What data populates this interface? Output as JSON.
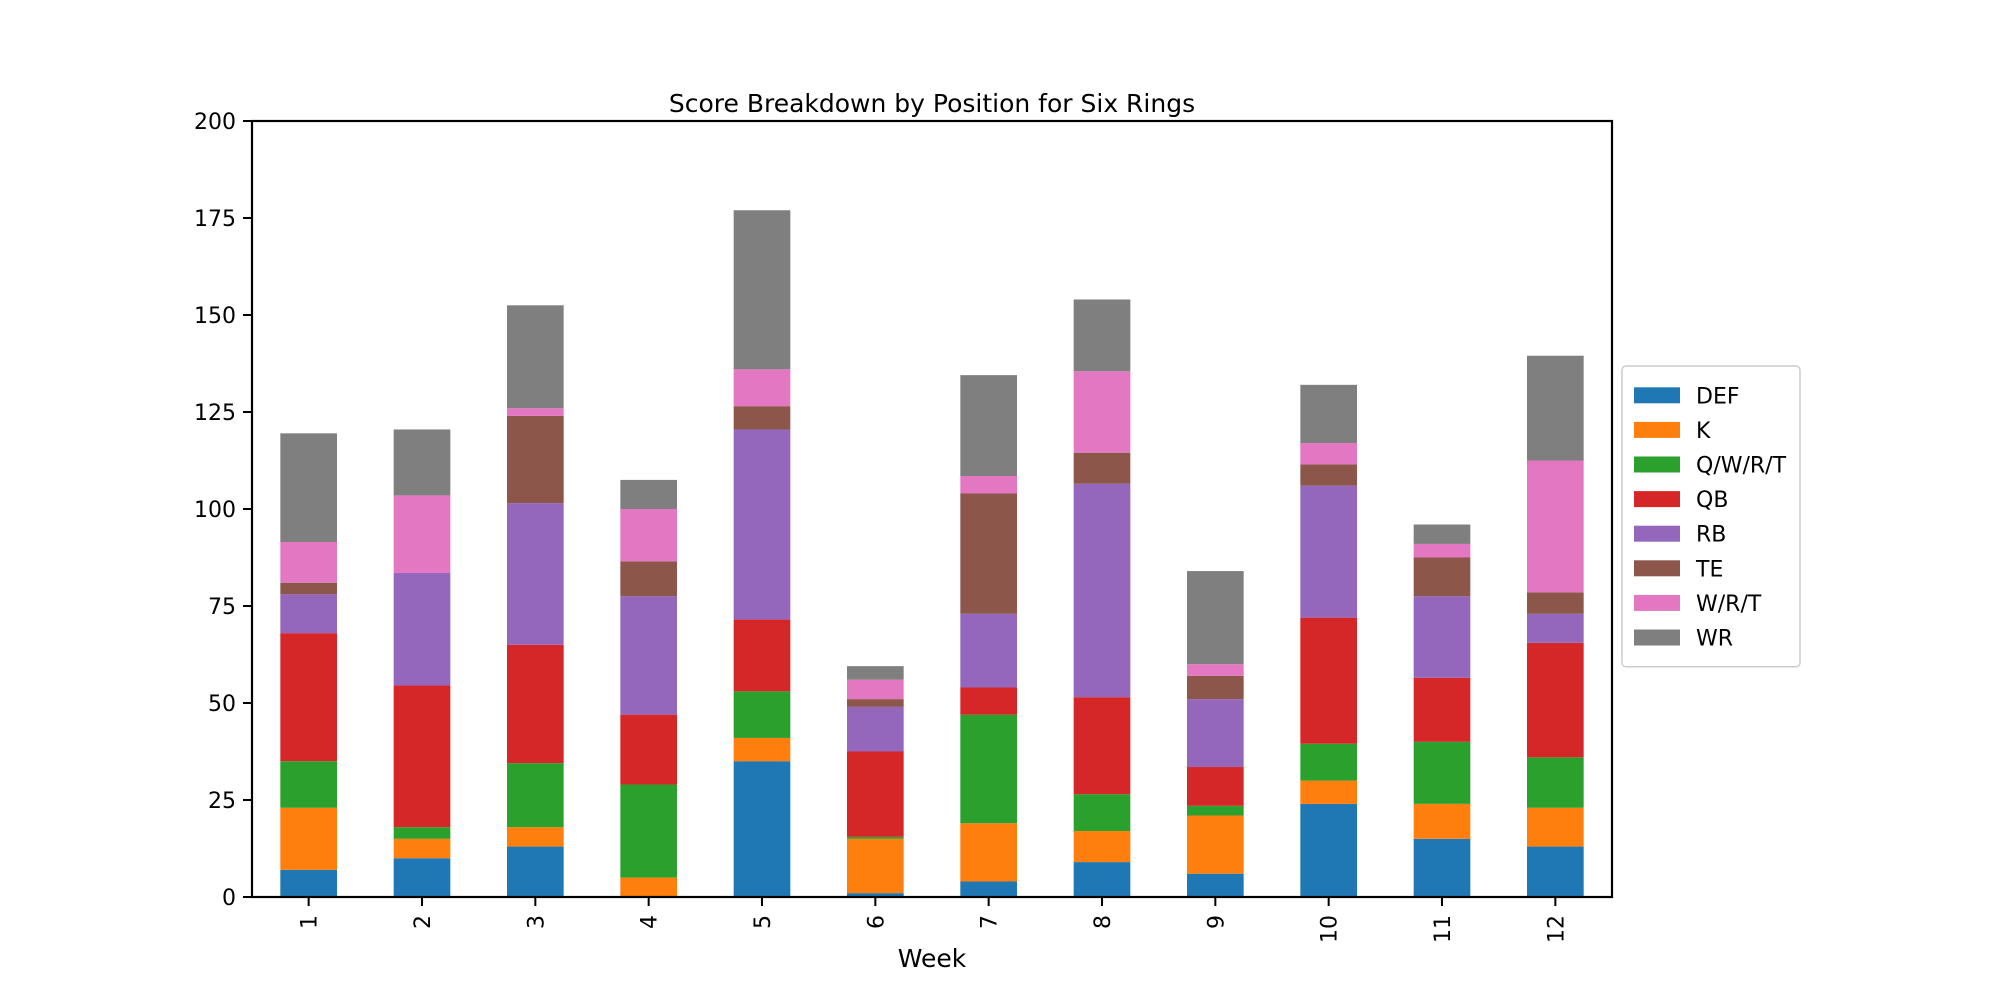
{
  "chart_data": {
    "type": "bar",
    "stacked": true,
    "title": "Score Breakdown by Position for Six Rings",
    "xlabel": "Week",
    "ylabel": "",
    "ylim": [
      0,
      200
    ],
    "yticks": [
      0,
      25,
      50,
      75,
      100,
      125,
      150,
      175,
      200
    ],
    "categories": [
      "1",
      "2",
      "3",
      "4",
      "5",
      "6",
      "7",
      "8",
      "9",
      "10",
      "11",
      "12"
    ],
    "legend_position": "right",
    "series": [
      {
        "name": "DEF",
        "color": "#1f77b4",
        "values": [
          7,
          10,
          13,
          0,
          35,
          1,
          4,
          9,
          6,
          24,
          15,
          13
        ]
      },
      {
        "name": "K",
        "color": "#ff7f0e",
        "values": [
          16,
          5,
          5,
          5,
          6,
          14,
          15,
          8,
          15,
          6,
          9,
          10
        ]
      },
      {
        "name": "Q/W/R/T",
        "color": "#2ca02c",
        "values": [
          12,
          3,
          16.5,
          24,
          12,
          0.5,
          28,
          9.5,
          2.5,
          9.5,
          16,
          13
        ]
      },
      {
        "name": "QB",
        "color": "#d62728",
        "values": [
          33,
          36.5,
          30.5,
          18,
          18.5,
          22,
          7,
          25,
          10,
          32.5,
          16.5,
          29.5
        ]
      },
      {
        "name": "RB",
        "color": "#9467bd",
        "values": [
          10,
          29,
          36.5,
          30.5,
          49,
          11.5,
          19,
          55,
          17.5,
          34,
          21,
          7.5
        ]
      },
      {
        "name": "TE",
        "color": "#8c564b",
        "values": [
          3,
          0,
          22.5,
          9,
          6,
          2,
          31,
          8,
          6,
          5.5,
          10,
          5.5
        ]
      },
      {
        "name": "W/R/T",
        "color": "#e377c2",
        "values": [
          10.5,
          20,
          2,
          13.5,
          9.5,
          5,
          4.5,
          21,
          3,
          5.5,
          3.5,
          34
        ]
      },
      {
        "name": "WR",
        "color": "#7f7f7f",
        "values": [
          28,
          17,
          26.5,
          7.5,
          41,
          3.5,
          26,
          18.5,
          24,
          15,
          5,
          27
        ]
      }
    ]
  }
}
